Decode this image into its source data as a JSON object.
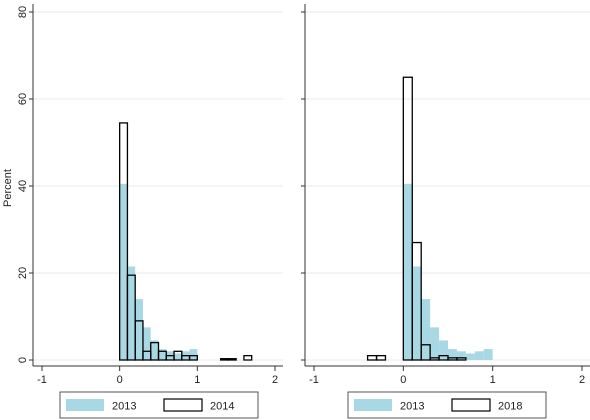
{
  "chart_data": [
    {
      "type": "bar",
      "title": "",
      "xlabel": "",
      "ylabel": "Percent",
      "xlim": [
        -1,
        2
      ],
      "ylim": [
        0,
        80
      ],
      "x_ticks": [
        "-1",
        "0",
        "1",
        "2"
      ],
      "y_ticks": [
        "0",
        "20",
        "40",
        "60",
        "80"
      ],
      "bin_width": 0.1,
      "grid": true,
      "legend_position": "bottom",
      "series": [
        {
          "name": "2013",
          "style": "filled",
          "color": "#a8d8e4",
          "points": [
            {
              "x": 0.05,
              "y": 40.5
            },
            {
              "x": 0.15,
              "y": 21.5
            },
            {
              "x": 0.25,
              "y": 14
            },
            {
              "x": 0.35,
              "y": 7.5
            },
            {
              "x": 0.45,
              "y": 4.5
            },
            {
              "x": 0.55,
              "y": 2.5
            },
            {
              "x": 0.65,
              "y": 2
            },
            {
              "x": 0.75,
              "y": 1.5
            },
            {
              "x": 0.85,
              "y": 2
            },
            {
              "x": 0.95,
              "y": 2.5
            }
          ]
        },
        {
          "name": "2014",
          "style": "outline",
          "color": "#000000",
          "points": [
            {
              "x": 0.05,
              "y": 54.5
            },
            {
              "x": 0.15,
              "y": 19.5
            },
            {
              "x": 0.25,
              "y": 9
            },
            {
              "x": 0.35,
              "y": 2
            },
            {
              "x": 0.45,
              "y": 4
            },
            {
              "x": 0.55,
              "y": 2
            },
            {
              "x": 0.65,
              "y": 1
            },
            {
              "x": 0.75,
              "y": 2
            },
            {
              "x": 0.85,
              "y": 1
            },
            {
              "x": 0.95,
              "y": 1
            },
            {
              "x": 1.35,
              "y": 0.3
            },
            {
              "x": 1.45,
              "y": 0.3
            },
            {
              "x": 1.65,
              "y": 1
            }
          ]
        }
      ]
    },
    {
      "type": "bar",
      "title": "",
      "xlabel": "",
      "ylabel": "",
      "xlim": [
        -1,
        2
      ],
      "ylim": [
        0,
        80
      ],
      "x_ticks": [
        "-1",
        "0",
        "1",
        "2"
      ],
      "y_ticks": [],
      "bin_width": 0.1,
      "grid": true,
      "legend_position": "bottom",
      "series": [
        {
          "name": "2013",
          "style": "filled",
          "color": "#a8d8e4",
          "points": [
            {
              "x": 0.05,
              "y": 40.5
            },
            {
              "x": 0.15,
              "y": 21.5
            },
            {
              "x": 0.25,
              "y": 14
            },
            {
              "x": 0.35,
              "y": 7.5
            },
            {
              "x": 0.45,
              "y": 4.5
            },
            {
              "x": 0.55,
              "y": 2.5
            },
            {
              "x": 0.65,
              "y": 2
            },
            {
              "x": 0.75,
              "y": 1.5
            },
            {
              "x": 0.85,
              "y": 2
            },
            {
              "x": 0.95,
              "y": 2.5
            }
          ]
        },
        {
          "name": "2018",
          "style": "outline",
          "color": "#000000",
          "points": [
            {
              "x": -0.35,
              "y": 1
            },
            {
              "x": -0.25,
              "y": 1
            },
            {
              "x": 0.05,
              "y": 65
            },
            {
              "x": 0.15,
              "y": 27
            },
            {
              "x": 0.25,
              "y": 3.5
            },
            {
              "x": 0.35,
              "y": 0.5
            },
            {
              "x": 0.45,
              "y": 1
            },
            {
              "x": 0.55,
              "y": 0.5
            },
            {
              "x": 0.65,
              "y": 0.5
            }
          ]
        }
      ]
    }
  ]
}
